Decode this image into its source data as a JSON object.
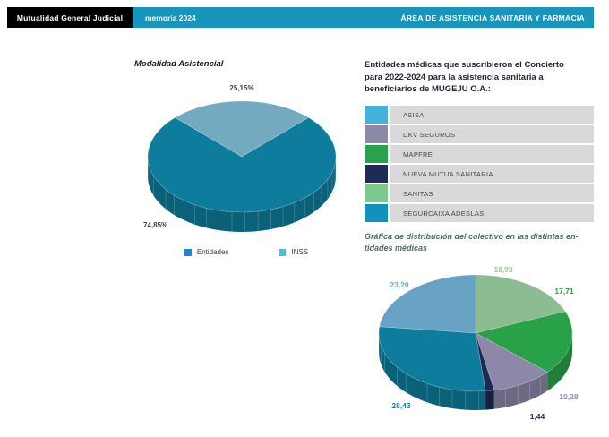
{
  "header": {
    "brand": "Mutualidad General Judicial",
    "memoria": "memoria 2024",
    "section": "ÁREA DE ASISTENCIA SANITARIA Y FARMACIA",
    "accent_color": "#1895bd"
  },
  "left_chart": {
    "title": "Modalidad Asistencial",
    "legend": [
      {
        "label": "Entidades",
        "color": "#1e88c9"
      },
      {
        "label": "INSS",
        "color": "#5bb7d9"
      }
    ]
  },
  "right_panel": {
    "heading": "Entidades médicas que suscribieron el Concierto\npara 2022-2024 para la asistencia sanitaria a\nbeneficiarios de MUGEJU O.A.:",
    "entities": [
      {
        "name": "ASISA",
        "color": "#45b1d8"
      },
      {
        "name": "DKV SEGUROS",
        "color": "#8b8aa6"
      },
      {
        "name": "MAPFRE",
        "color": "#2aa14c"
      },
      {
        "name": "NUEVA MUTUA SANITARIA",
        "color": "#1d2b56"
      },
      {
        "name": "SANITAS",
        "color": "#7cc98c"
      },
      {
        "name": "SEGURCAIXA ADESLAS",
        "color": "#0f93bc"
      }
    ],
    "chart_title": "Gráfica de distribución del colectivo en las distintas en-\ntidades médicas"
  },
  "chart_data": [
    {
      "type": "pie",
      "style": "3d",
      "title": "Modalidad Asistencial",
      "categories": [
        "Entidades",
        "INSS"
      ],
      "values": [
        74.85,
        25.15
      ],
      "labels": [
        "74,85%",
        "25,15%"
      ],
      "colors": [
        "#0d7c9d",
        "#74aabf"
      ],
      "legend_position": "bottom"
    },
    {
      "type": "pie",
      "style": "3d",
      "title": "Gráfica de distribución del colectivo en las distintas entidades médicas",
      "categories": [
        "SANITAS",
        "MAPFRE",
        "DKV SEGUROS",
        "NUEVA MUTUA SANITARIA",
        "SEGURCAIXA ADESLAS",
        "ASISA"
      ],
      "values": [
        18.93,
        17.71,
        10.28,
        1.44,
        28.43,
        23.2
      ],
      "labels": [
        "18,93",
        "17,71",
        "10,28",
        "1,44",
        "28,43",
        "23,20"
      ],
      "colors": [
        "#8cbd92",
        "#28a148",
        "#8d87a8",
        "#1c2a52",
        "#0d7c9d",
        "#68a2c5"
      ],
      "label_colors": [
        "#9cc5a3",
        "#2aa14c",
        "#8d8aa8",
        "#1b2a55",
        "#1286ac",
        "#74a7cc"
      ],
      "start": "top-clockwise",
      "legend_position": "none"
    }
  ]
}
